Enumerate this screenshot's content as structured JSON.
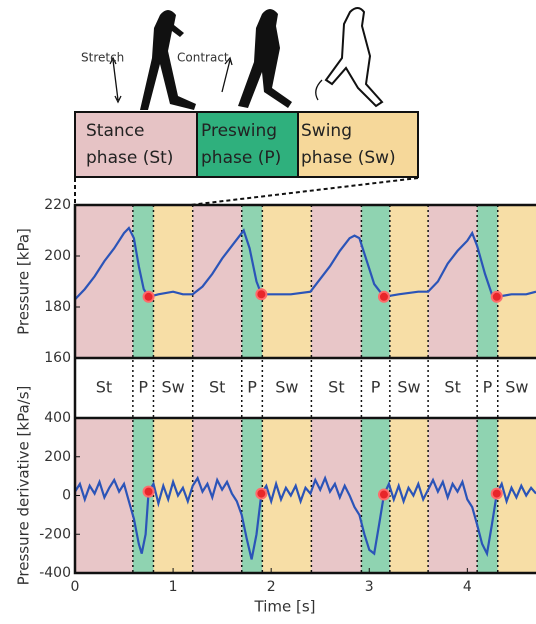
{
  "diagram": {
    "stretch": "Stretch",
    "contract": "Contract",
    "stance": [
      "Stance",
      "phase (St)"
    ],
    "preswing": [
      "Preswing",
      "phase (P)"
    ],
    "swing": [
      "Swing",
      "phase (Sw)"
    ]
  },
  "phases": [
    {
      "label": "St",
      "start": 0,
      "end": 0.59,
      "color": "#e8c6c8"
    },
    {
      "label": "P",
      "start": 0.59,
      "end": 0.8,
      "color": "#8fd3b1"
    },
    {
      "label": "Sw",
      "start": 0.8,
      "end": 1.2,
      "color": "#f7dea6"
    },
    {
      "label": "St",
      "start": 1.2,
      "end": 1.7,
      "color": "#e8c6c8"
    },
    {
      "label": "P",
      "start": 1.7,
      "end": 1.91,
      "color": "#8fd3b1"
    },
    {
      "label": "Sw",
      "start": 1.91,
      "end": 2.41,
      "color": "#f7dea6"
    },
    {
      "label": "St",
      "start": 2.41,
      "end": 2.92,
      "color": "#e8c6c8"
    },
    {
      "label": "P",
      "start": 2.92,
      "end": 3.21,
      "color": "#8fd3b1"
    },
    {
      "label": "Sw",
      "start": 3.21,
      "end": 3.6,
      "color": "#f7dea6"
    },
    {
      "label": "St",
      "start": 3.6,
      "end": 4.1,
      "color": "#e8c6c8"
    },
    {
      "label": "P",
      "start": 4.1,
      "end": 4.31,
      "color": "#8fd3b1"
    },
    {
      "label": "Sw",
      "start": 4.31,
      "end": 4.7,
      "color": "#f7dea6"
    }
  ],
  "chart_data": [
    {
      "type": "line",
      "ylabel": "Pressure [kPa]",
      "xlim": [
        0,
        4.7
      ],
      "ylim": [
        160,
        220
      ],
      "yticks": [
        160,
        180,
        200,
        220
      ],
      "series": [
        {
          "color": "#2b54b8",
          "x": [
            0,
            0.1,
            0.2,
            0.3,
            0.4,
            0.5,
            0.55,
            0.6,
            0.65,
            0.7,
            0.75,
            0.85,
            1.0,
            1.1,
            1.2,
            1.3,
            1.4,
            1.5,
            1.6,
            1.7,
            1.72,
            1.78,
            1.85,
            1.9,
            2.0,
            2.2,
            2.4,
            2.5,
            2.6,
            2.7,
            2.8,
            2.85,
            2.9,
            3.0,
            3.05,
            3.15,
            3.3,
            3.5,
            3.6,
            3.7,
            3.8,
            3.9,
            4.0,
            4.05,
            4.1,
            4.18,
            4.25,
            4.3,
            4.45,
            4.6,
            4.7
          ],
          "values": [
            183,
            187,
            192,
            198,
            203,
            209,
            211,
            207,
            196,
            187,
            184,
            185,
            186,
            185,
            185,
            188,
            193,
            199,
            204,
            209,
            210,
            203,
            190,
            185,
            185,
            185,
            186,
            191,
            196,
            202,
            207,
            208,
            207,
            195,
            189,
            184,
            185,
            186,
            186,
            190,
            197,
            202,
            206,
            209,
            204,
            193,
            185,
            184,
            185,
            185,
            186
          ]
        }
      ],
      "markers": {
        "color": "#e8262a",
        "x": [
          0.75,
          1.9,
          3.15,
          4.3
        ],
        "values": [
          184,
          185,
          184,
          184
        ]
      }
    },
    {
      "type": "line",
      "ylabel": "Pressure derivative [kPa/s]",
      "xlabel": "Time [s]",
      "xlim": [
        0,
        4.7
      ],
      "ylim": [
        -400,
        400
      ],
      "yticks": [
        -400,
        -200,
        0,
        200,
        400
      ],
      "xticks": [
        0,
        1,
        2,
        3,
        4
      ],
      "series": [
        {
          "color": "#2b54b8",
          "x": [
            0,
            0.05,
            0.1,
            0.15,
            0.2,
            0.25,
            0.3,
            0.35,
            0.4,
            0.45,
            0.5,
            0.55,
            0.6,
            0.65,
            0.68,
            0.72,
            0.75,
            0.8,
            0.85,
            0.9,
            0.95,
            1.0,
            1.05,
            1.1,
            1.15,
            1.2,
            1.25,
            1.3,
            1.35,
            1.4,
            1.45,
            1.5,
            1.55,
            1.6,
            1.65,
            1.7,
            1.75,
            1.8,
            1.85,
            1.9,
            1.95,
            2.0,
            2.05,
            2.1,
            2.15,
            2.2,
            2.25,
            2.3,
            2.35,
            2.4,
            2.45,
            2.5,
            2.55,
            2.6,
            2.65,
            2.7,
            2.75,
            2.8,
            2.85,
            2.9,
            2.95,
            3.0,
            3.05,
            3.1,
            3.15,
            3.2,
            3.25,
            3.3,
            3.35,
            3.4,
            3.45,
            3.5,
            3.55,
            3.6,
            3.65,
            3.7,
            3.75,
            3.8,
            3.85,
            3.9,
            3.95,
            4.0,
            4.05,
            4.1,
            4.15,
            4.2,
            4.25,
            4.3,
            4.35,
            4.4,
            4.45,
            4.5,
            4.55,
            4.6,
            4.65,
            4.7
          ],
          "values": [
            20,
            60,
            -20,
            50,
            10,
            70,
            -10,
            40,
            80,
            20,
            60,
            -30,
            -120,
            -250,
            -300,
            -200,
            20,
            60,
            -40,
            50,
            -20,
            70,
            0,
            40,
            -30,
            50,
            90,
            20,
            60,
            -10,
            80,
            30,
            70,
            10,
            -30,
            -100,
            -220,
            -330,
            -200,
            10,
            50,
            -30,
            60,
            -20,
            40,
            0,
            50,
            -30,
            40,
            10,
            80,
            30,
            90,
            20,
            60,
            -10,
            50,
            0,
            -60,
            -100,
            -200,
            -280,
            -300,
            -150,
            5,
            60,
            -20,
            50,
            -30,
            40,
            0,
            60,
            -20,
            30,
            80,
            20,
            70,
            -10,
            60,
            20,
            70,
            -20,
            -60,
            -150,
            -250,
            -300,
            -150,
            10,
            60,
            -30,
            40,
            -10,
            50,
            0,
            40,
            10
          ]
        }
      ],
      "markers": {
        "color": "#e8262a",
        "x": [
          0.75,
          1.9,
          3.15,
          4.3
        ],
        "values": [
          20,
          10,
          5,
          10
        ]
      }
    }
  ]
}
